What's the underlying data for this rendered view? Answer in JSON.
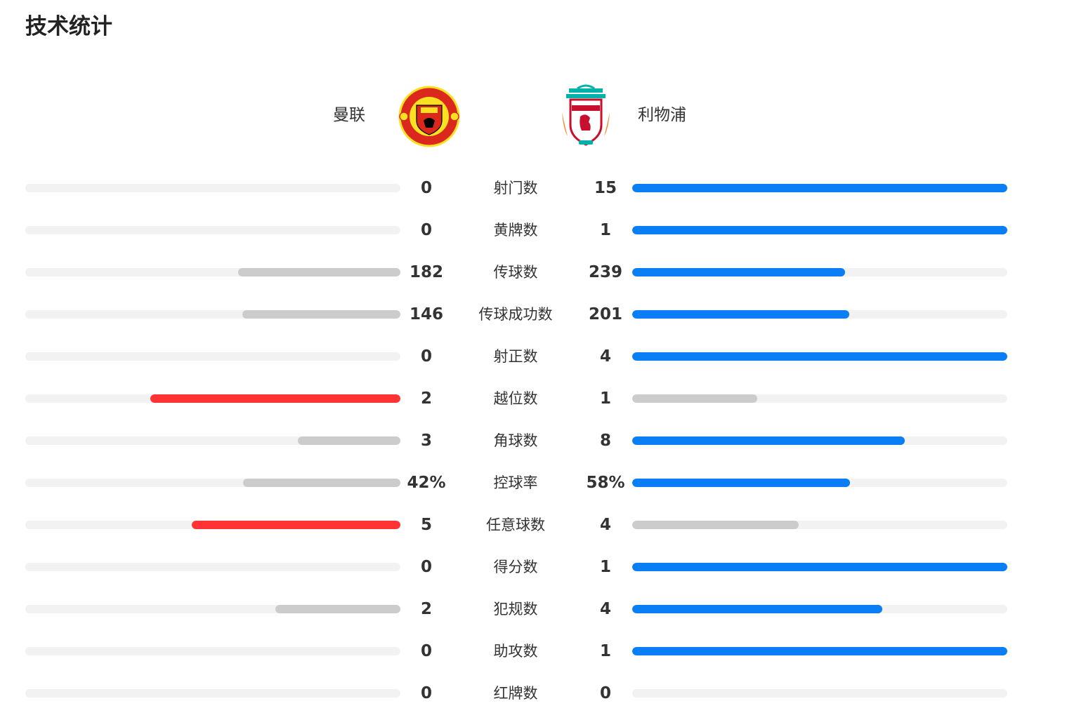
{
  "title": "技术统计",
  "teams": {
    "home": {
      "name": "曼联",
      "crest_icon": "manchester-united-crest-icon"
    },
    "away": {
      "name": "利物浦",
      "crest_icon": "liverpool-crest-icon"
    }
  },
  "colors": {
    "home_leading": "#ff3333",
    "away_leading": "#0a7ef5",
    "trailing": "#cccccc",
    "track": "#f2f2f2"
  },
  "stats": [
    {
      "label": "射门数",
      "home": "0",
      "away": "15",
      "home_fraction": 0,
      "away_fraction": 1,
      "leader": "away"
    },
    {
      "label": "黄牌数",
      "home": "0",
      "away": "1",
      "home_fraction": 0,
      "away_fraction": 1,
      "leader": "away"
    },
    {
      "label": "传球数",
      "home": "182",
      "away": "239",
      "home_fraction": 0.432,
      "away_fraction": 0.568,
      "leader": "away"
    },
    {
      "label": "传球成功数",
      "home": "146",
      "away": "201",
      "home_fraction": 0.421,
      "away_fraction": 0.579,
      "leader": "away"
    },
    {
      "label": "射正数",
      "home": "0",
      "away": "4",
      "home_fraction": 0,
      "away_fraction": 1,
      "leader": "away"
    },
    {
      "label": "越位数",
      "home": "2",
      "away": "1",
      "home_fraction": 0.667,
      "away_fraction": 0.333,
      "leader": "home"
    },
    {
      "label": "角球数",
      "home": "3",
      "away": "8",
      "home_fraction": 0.273,
      "away_fraction": 0.727,
      "leader": "away"
    },
    {
      "label": "控球率",
      "home": "42%",
      "away": "58%",
      "home_fraction": 0.42,
      "away_fraction": 0.58,
      "leader": "away"
    },
    {
      "label": "任意球数",
      "home": "5",
      "away": "4",
      "home_fraction": 0.556,
      "away_fraction": 0.444,
      "leader": "home"
    },
    {
      "label": "得分数",
      "home": "0",
      "away": "1",
      "home_fraction": 0,
      "away_fraction": 1,
      "leader": "away"
    },
    {
      "label": "犯规数",
      "home": "2",
      "away": "4",
      "home_fraction": 0.333,
      "away_fraction": 0.667,
      "leader": "away"
    },
    {
      "label": "助攻数",
      "home": "0",
      "away": "1",
      "home_fraction": 0,
      "away_fraction": 1,
      "leader": "away"
    },
    {
      "label": "红牌数",
      "home": "0",
      "away": "0",
      "home_fraction": 0,
      "away_fraction": 0,
      "leader": "none"
    }
  ]
}
